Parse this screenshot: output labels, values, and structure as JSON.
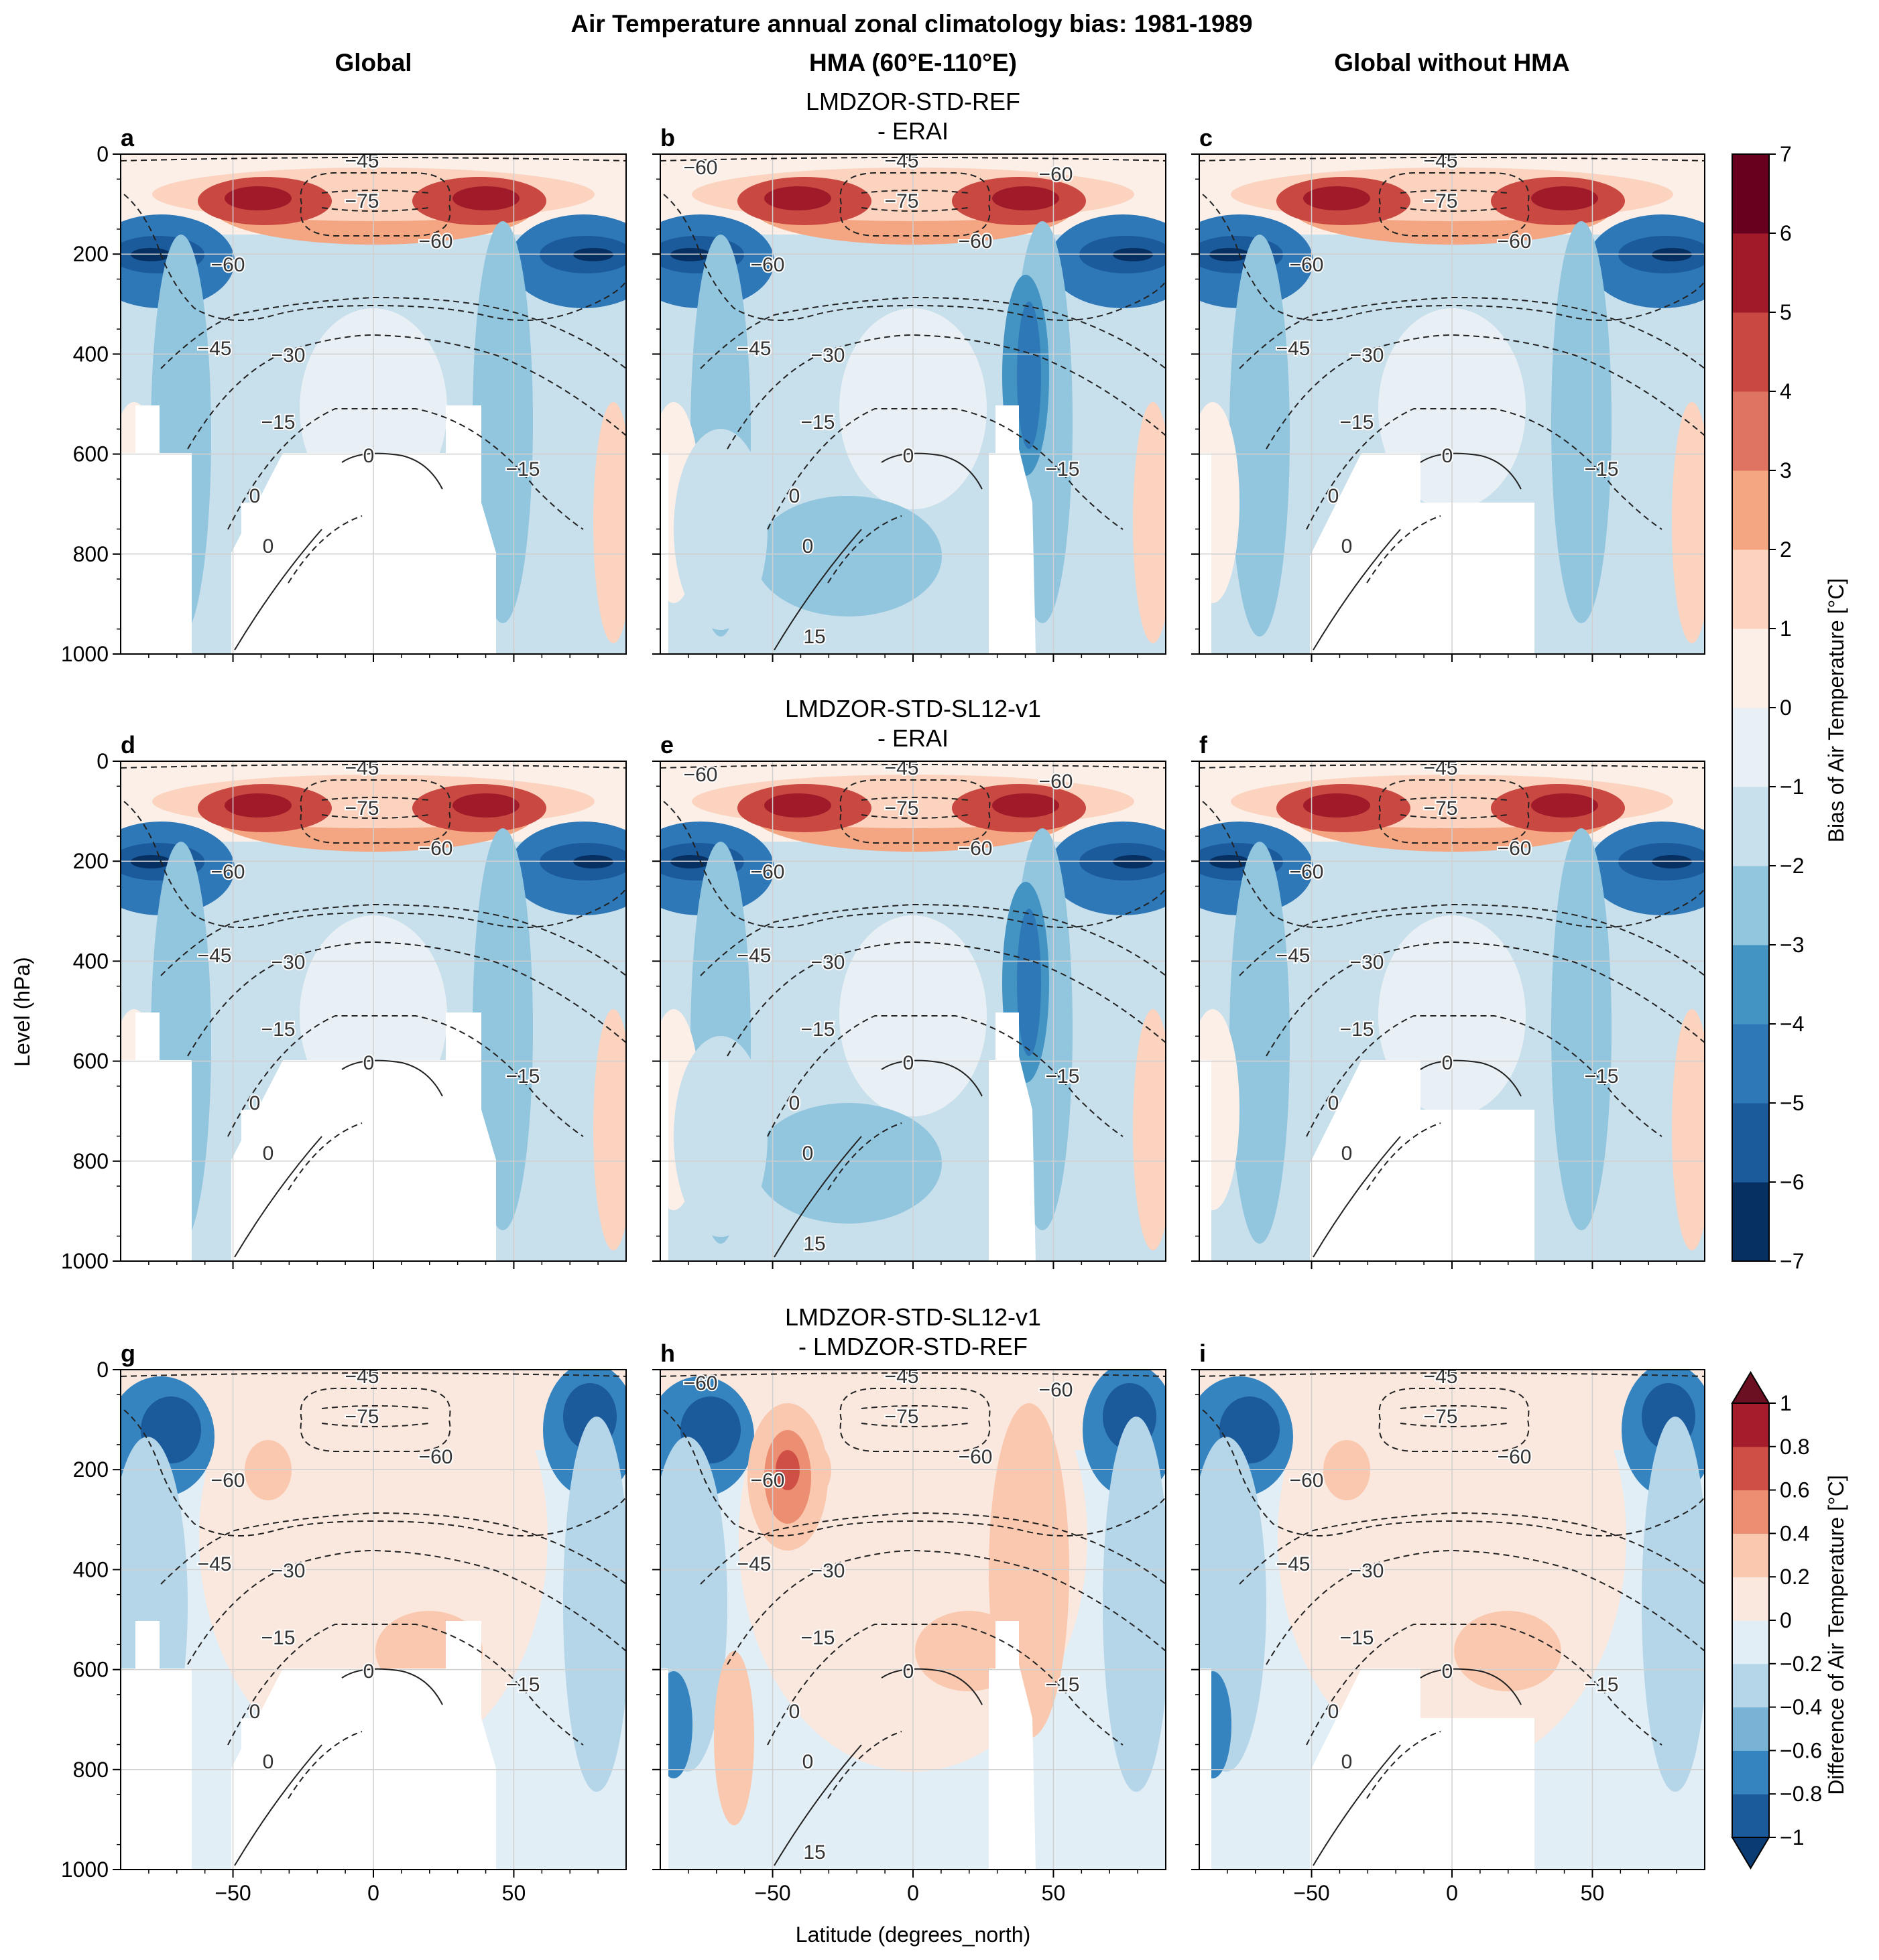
{
  "figure": {
    "title": "Air Temperature annual zonal climatology bias: 1981-1989",
    "column_titles": [
      "Global",
      "HMA (60°E-110°E)",
      "Global without HMA"
    ],
    "row_titles": [
      [
        "LMDZOR-STD-REF",
        "- ERAI"
      ],
      [
        "LMDZOR-STD-SL12-v1",
        "- ERAI"
      ],
      [
        "LMDZOR-STD-SL12-v1",
        "- LMDZOR-STD-REF"
      ]
    ],
    "panel_letters": [
      "a",
      "b",
      "c",
      "d",
      "e",
      "f",
      "g",
      "h",
      "i"
    ],
    "colors": {
      "bias_cmap": [
        "#053061",
        "#1b5a9b",
        "#2e78b7",
        "#4393c3",
        "#92c5de",
        "#c8dfec",
        "#e8f0f5",
        "#fbefe8",
        "#fbd3bf",
        "#f4a582",
        "#de7461",
        "#c94841",
        "#a01a29",
        "#67001f"
      ],
      "diff_cmap": [
        "#1b5a9b",
        "#3584c0",
        "#78b3d6",
        "#b5d5e8",
        "#e2eef5",
        "#fae8de",
        "#f9c8ae",
        "#ec8e71",
        "#cf4e45",
        "#a51c2c"
      ],
      "diff_under": "#0a3b72",
      "diff_over": "#6b0f22",
      "contour_line": "#222222",
      "masked": "#ffffff"
    }
  },
  "chart_data": [
    {
      "type": "heatmap",
      "panels": [
        "a",
        "b",
        "c",
        "d",
        "e",
        "f"
      ],
      "x_ticks": [
        "−50",
        "0",
        "50"
      ],
      "x_values": [
        -50,
        0,
        50
      ],
      "xlim": [
        -90,
        90
      ],
      "xlabel": "Latitude (degrees_north)",
      "y_ticks": [
        "0",
        "200",
        "400",
        "600",
        "800",
        "1000"
      ],
      "y_values": [
        0,
        200,
        400,
        600,
        800,
        1000
      ],
      "ylim": [
        1000,
        0
      ],
      "ylabel": "Level (hPa)",
      "grid": true,
      "colorbar": {
        "label": "Bias of Air Temperature [°C]",
        "levels": [
          -7,
          -6,
          -5,
          -4,
          -3,
          -2,
          -1,
          0,
          1,
          2,
          3,
          4,
          5,
          6,
          7
        ],
        "tick_labels": [
          "−7",
          "−6",
          "−5",
          "−4",
          "−3",
          "−2",
          "−1",
          "0",
          "1",
          "2",
          "3",
          "4",
          "5",
          "6",
          "7"
        ]
      },
      "contour_labels": [
        "−75",
        "−60",
        "−45",
        "−30",
        "−15",
        "0",
        "15"
      ]
    },
    {
      "type": "heatmap",
      "panels": [
        "g",
        "h",
        "i"
      ],
      "x_ticks": [
        "−50",
        "0",
        "50"
      ],
      "x_values": [
        -50,
        0,
        50
      ],
      "xlim": [
        -90,
        90
      ],
      "xlabel": "Latitude (degrees_north)",
      "y_ticks": [
        "0",
        "200",
        "400",
        "600",
        "800",
        "1000"
      ],
      "y_values": [
        0,
        200,
        400,
        600,
        800,
        1000
      ],
      "ylim": [
        1000,
        0
      ],
      "ylabel": "Level (hPa)",
      "grid": true,
      "colorbar": {
        "label": "Difference of Air Temperature [°C]",
        "levels": [
          -1,
          -0.8,
          -0.6,
          -0.4,
          -0.2,
          0,
          0.2,
          0.4,
          0.6,
          0.8,
          1
        ],
        "tick_labels": [
          "−1",
          "−0.8",
          "−0.6",
          "−0.4",
          "−0.2",
          "0",
          "0.2",
          "0.4",
          "0.6",
          "0.8",
          "1"
        ],
        "extend": "both"
      },
      "contour_labels": [
        "−75",
        "−60",
        "−45",
        "−30",
        "−15",
        "0",
        "15"
      ]
    }
  ]
}
